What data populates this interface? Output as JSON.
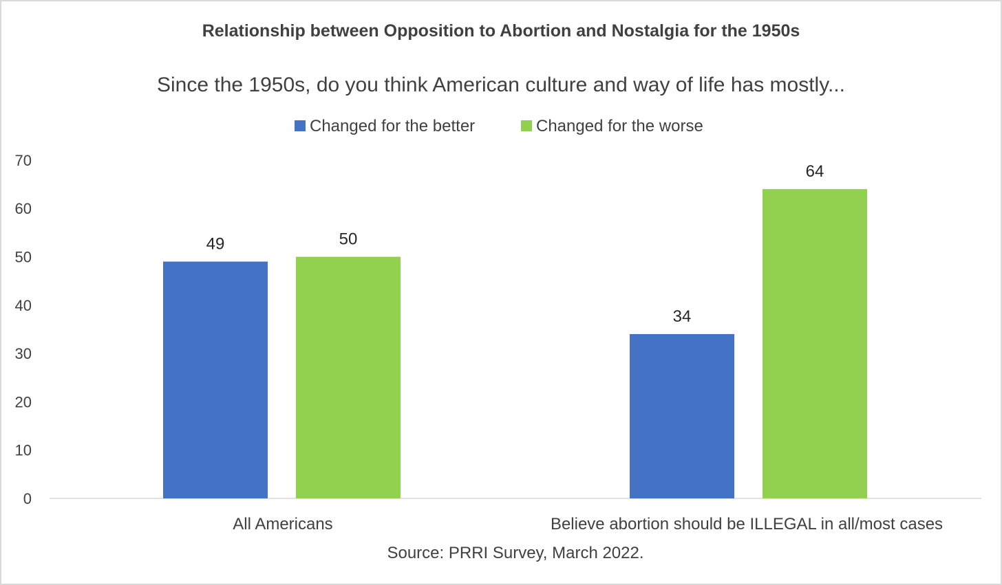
{
  "chart_data": {
    "type": "bar",
    "title": "Relationship between Opposition to Abortion and Nostalgia for the 1950s",
    "subtitle": "Since the 1950s, do you think American culture and way of life has mostly...",
    "categories": [
      "All Americans",
      "Believe abortion should be ILLEGAL in all/most cases"
    ],
    "series": [
      {
        "name": "Changed for the better",
        "color": "#4472C4",
        "values": [
          49,
          34
        ]
      },
      {
        "name": "Changed for the worse",
        "color": "#92D050",
        "values": [
          50,
          64
        ]
      }
    ],
    "ylim": [
      0,
      70
    ],
    "yticks": [
      0,
      10,
      20,
      30,
      40,
      50,
      60,
      70
    ],
    "grid": false,
    "legend_position": "top",
    "source": "Source: PRRI Survey, March 2022."
  }
}
